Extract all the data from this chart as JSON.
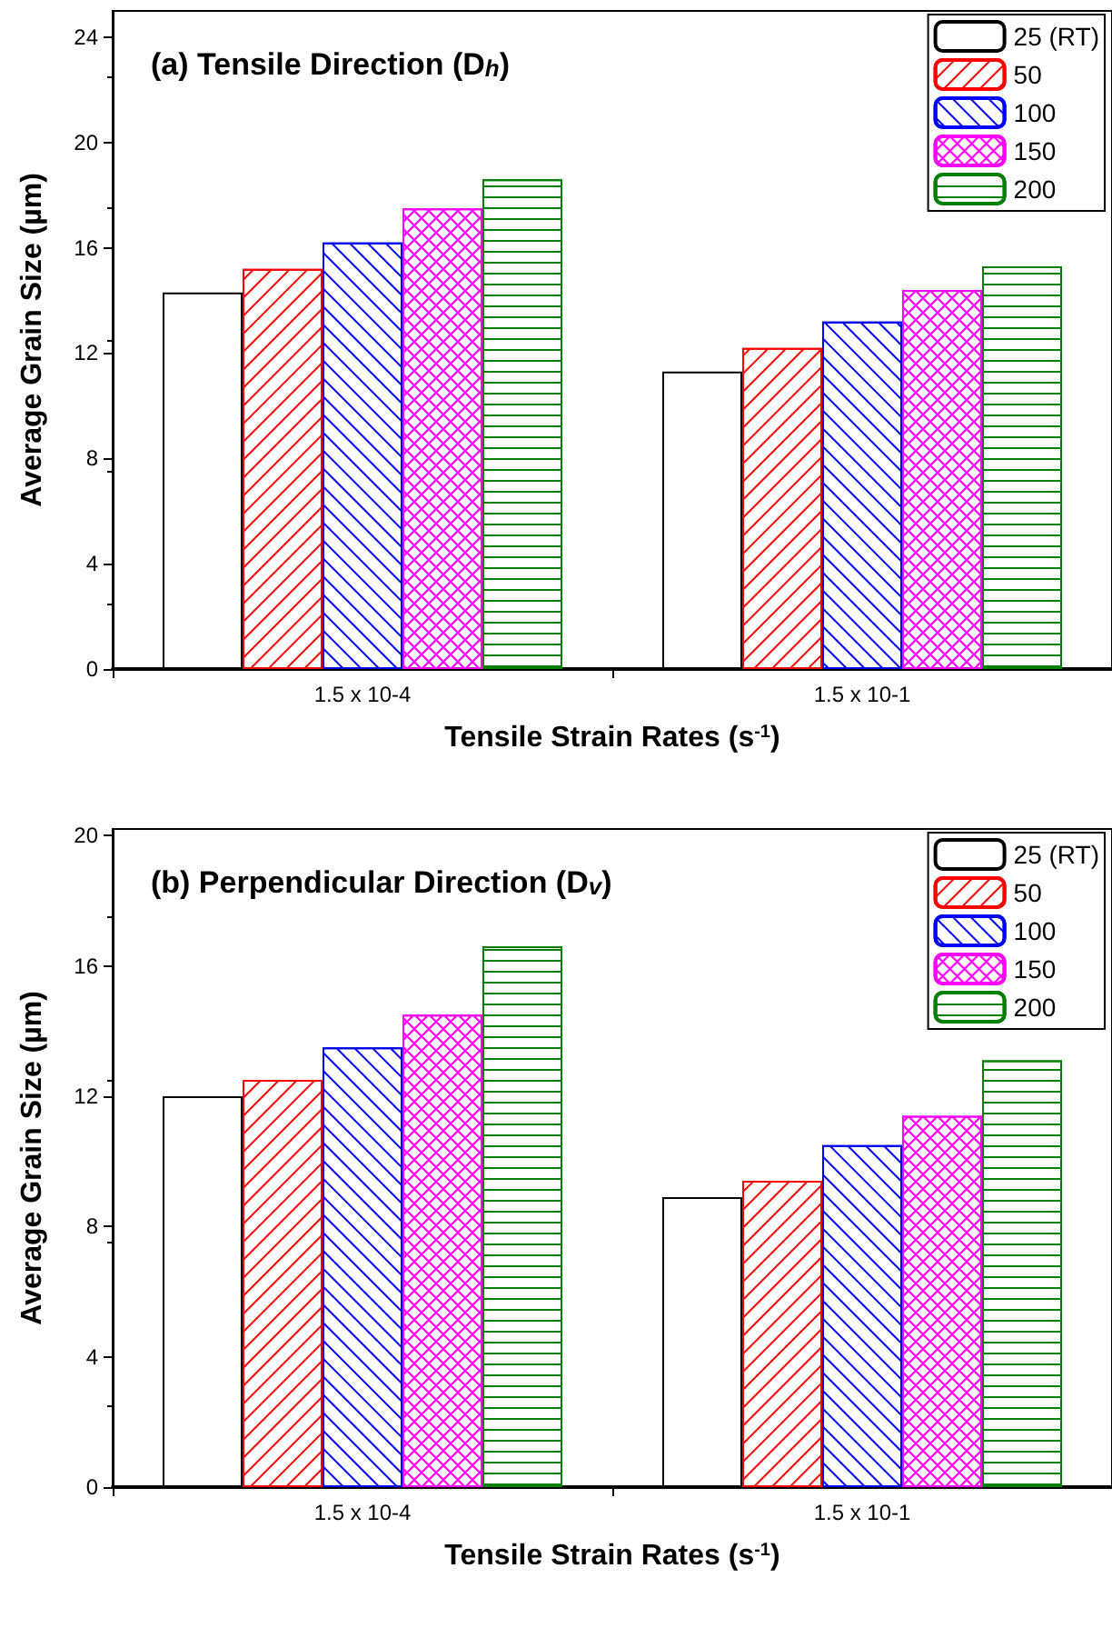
{
  "chart_data": [
    {
      "type": "bar",
      "title": "(a) Tensile Direction (D$_{h}$)",
      "xlabel": "Tensile Strain Rates (s$^{-1}$)",
      "ylabel": "Average Grain Size (µm)",
      "categories": [
        "1.5 x 10-4",
        "1.5 x 10-1"
      ],
      "series": [
        {
          "name": "25 (RT)",
          "color": "#000000",
          "values": [
            14.3,
            11.3
          ]
        },
        {
          "name": "50",
          "color": "#ff0000",
          "values": [
            15.2,
            12.2
          ]
        },
        {
          "name": "100",
          "color": "#0000ff",
          "values": [
            16.2,
            13.2
          ]
        },
        {
          "name": "150",
          "color": "#ff00ff",
          "values": [
            17.5,
            14.4
          ]
        },
        {
          "name": "200",
          "color": "#008000",
          "values": [
            18.6,
            15.3
          ]
        }
      ],
      "ylim": [
        0,
        25
      ],
      "yticks": [
        0,
        4,
        8,
        12,
        16,
        20,
        24
      ],
      "legend": "top right",
      "grid": false
    },
    {
      "type": "bar",
      "title": "(b) Perpendicular Direction (D$_{v}$)",
      "xlabel": "Tensile Strain Rates (s$^{-1}$)",
      "ylabel": "Average Grain Size (µm)",
      "categories": [
        "1.5 x 10-4",
        "1.5 x 10-1"
      ],
      "series": [
        {
          "name": "25 (RT)",
          "color": "#000000",
          "values": [
            12.0,
            8.9
          ]
        },
        {
          "name": "50",
          "color": "#ff0000",
          "values": [
            12.5,
            9.4
          ]
        },
        {
          "name": "100",
          "color": "#0000ff",
          "values": [
            13.5,
            10.5
          ]
        },
        {
          "name": "150",
          "color": "#ff00ff",
          "values": [
            14.5,
            11.4
          ]
        },
        {
          "name": "200",
          "color": "#008000",
          "values": [
            16.6,
            13.1
          ]
        }
      ],
      "ylim": [
        0,
        20.2
      ],
      "yticks": [
        0,
        4,
        8,
        12,
        16,
        20
      ],
      "legend": "top right",
      "grid": false
    }
  ]
}
